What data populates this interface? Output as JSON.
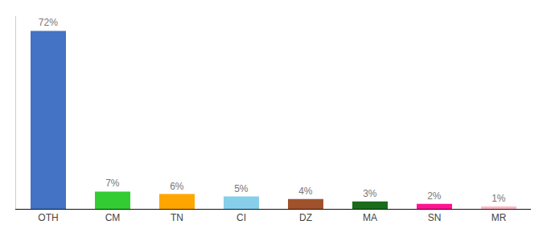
{
  "chart_data": {
    "type": "bar",
    "categories": [
      "OTH",
      "CM",
      "TN",
      "CI",
      "DZ",
      "MA",
      "SN",
      "MR"
    ],
    "values": [
      72,
      7,
      6,
      5,
      4,
      3,
      2,
      1
    ],
    "value_labels": [
      "72%",
      "7%",
      "6%",
      "5%",
      "4%",
      "3%",
      "2%",
      "1%"
    ],
    "colors": [
      "#4472C4",
      "#33CC33",
      "#FFA500",
      "#87CEEB",
      "#A0522D",
      "#1A6B1A",
      "#FF1493",
      "#FFB6C1"
    ],
    "ylim": [
      0,
      78
    ],
    "data_labels": true,
    "tick_labels": "x",
    "grid": false
  }
}
